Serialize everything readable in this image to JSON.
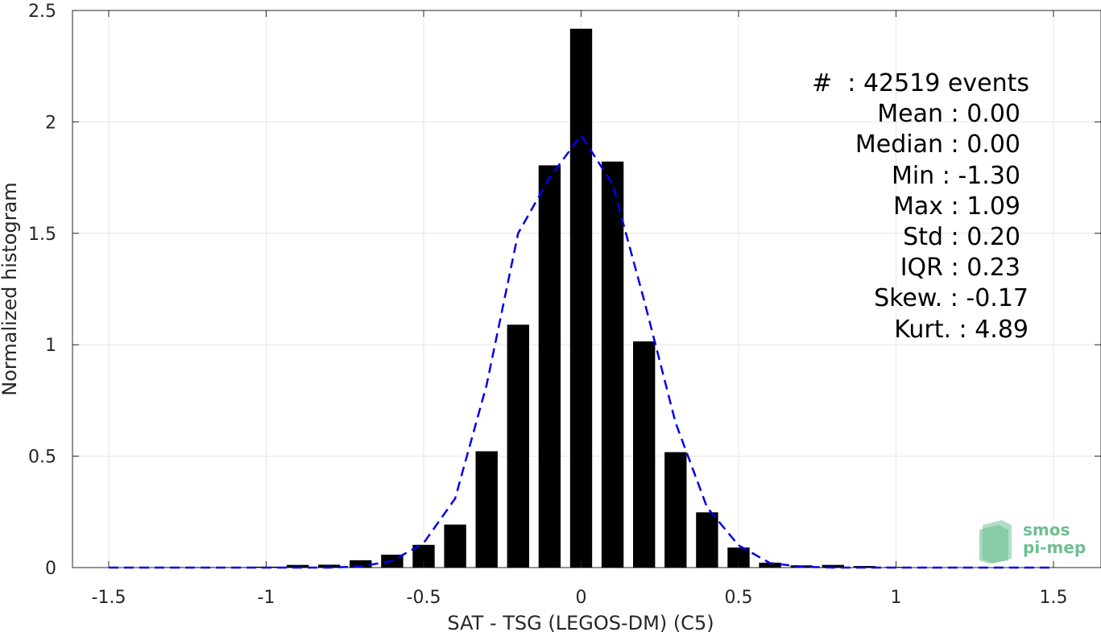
{
  "chart_data": {
    "type": "bar",
    "xlabel": "SAT - TSG (LEGOS-DM) (C5)",
    "ylabel": "Normalized histogram",
    "xlim": [
      -1.5,
      1.5
    ],
    "ylim": [
      0,
      2.5
    ],
    "xticks": [
      "-1.5",
      "-1",
      "-0.5",
      "0",
      "0.5",
      "1",
      "1.5"
    ],
    "xtick_values": [
      -1.5,
      -1,
      -0.5,
      0,
      0.5,
      1,
      1.5
    ],
    "yticks": [
      "0",
      "0.5",
      "1",
      "1.5",
      "2",
      "2.5"
    ],
    "ytick_values": [
      0,
      0.5,
      1,
      1.5,
      2,
      2.5
    ],
    "grid": true,
    "bar_width": 0.07,
    "bars": {
      "x": [
        -1.3,
        -1.2,
        -1.1,
        -1.0,
        -0.9,
        -0.8,
        -0.7,
        -0.6,
        -0.5,
        -0.4,
        -0.3,
        -0.2,
        -0.1,
        0.0,
        0.1,
        0.2,
        0.3,
        0.4,
        0.5,
        0.6,
        0.7,
        0.8,
        0.9,
        1.0
      ],
      "y": [
        0.002,
        0.002,
        0.002,
        0.004,
        0.012,
        0.013,
        0.033,
        0.058,
        0.102,
        0.193,
        0.522,
        1.09,
        1.805,
        2.418,
        1.822,
        1.015,
        0.518,
        0.248,
        0.09,
        0.022,
        0.01,
        0.012,
        0.007,
        0.003
      ],
      "color": "#000000"
    },
    "fit_line": {
      "style": "dashed",
      "color": "#0000ee",
      "x": [
        -1.5,
        -1.4,
        -1.3,
        -1.2,
        -1.1,
        -1.0,
        -0.9,
        -0.8,
        -0.7,
        -0.6,
        -0.5,
        -0.4,
        -0.3,
        -0.2,
        -0.1,
        0.0,
        0.1,
        0.2,
        0.3,
        0.4,
        0.5,
        0.6,
        0.7,
        0.8,
        0.9,
        1.0,
        1.1,
        1.2,
        1.3,
        1.4,
        1.5
      ],
      "y": [
        0,
        0,
        0,
        0,
        0,
        0,
        0,
        0,
        0.005,
        0.03,
        0.11,
        0.31,
        0.82,
        1.5,
        1.75,
        1.94,
        1.72,
        1.2,
        0.65,
        0.27,
        0.1,
        0.02,
        0.004,
        0,
        0,
        0,
        0,
        0,
        0,
        0,
        0
      ]
    },
    "annotations": [
      "#  : 42519 events",
      "Mean : 0.00",
      "Median : 0.00",
      "Min : -1.30",
      "Max : 1.09",
      "Std : 0.20",
      "IQR : 0.23",
      "Skew. : -0.17",
      "Kurt. : 4.89"
    ]
  },
  "logo": {
    "line1": "smos",
    "line2": "pi-mep"
  }
}
